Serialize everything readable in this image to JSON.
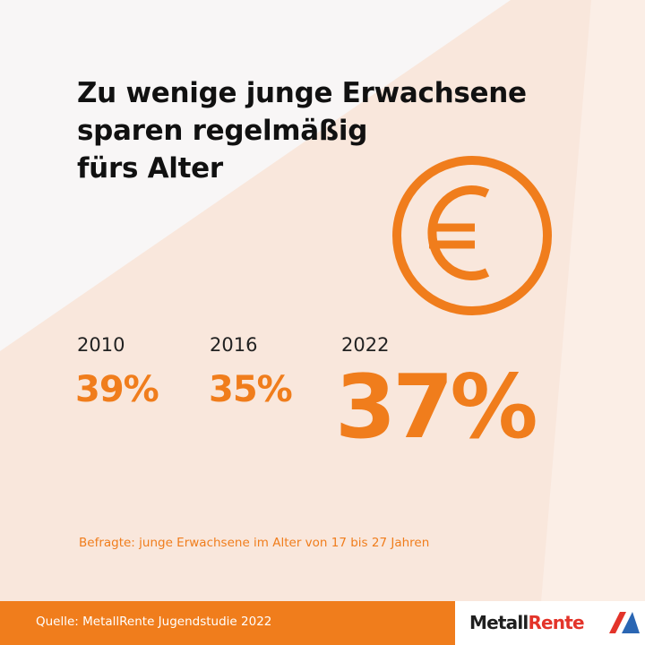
{
  "title": {
    "line1": "Zu wenige junge Erwachsene",
    "line2": "sparen regelmäßig",
    "line3": "fürs Alter"
  },
  "chart_data": {
    "type": "table",
    "title": "Zu wenige junge Erwachsene sparen regelmäßig fürs Alter",
    "categories": [
      "2010",
      "2016",
      "2022"
    ],
    "values": [
      39,
      35,
      37
    ],
    "value_labels": [
      "39%",
      "35%",
      "37%"
    ],
    "unit": "%"
  },
  "note": "Befragte: junge Erwachsene im Alter von 17 bis 27 Jahren",
  "footer": {
    "source": "Quelle: MetallRente Jugendstudie 2022",
    "logo_part1": "Metall",
    "logo_part2": "Rente"
  },
  "icons": {
    "currency": "euro-icon",
    "logo": "logo-mark-icon"
  },
  "colors": {
    "accent": "#f07d1c",
    "text": "#111111",
    "background": "#f8f6f6",
    "light_beam": "#f9e7dc",
    "logo_red": "#e3342a",
    "logo_blue": "#2a66b3"
  }
}
